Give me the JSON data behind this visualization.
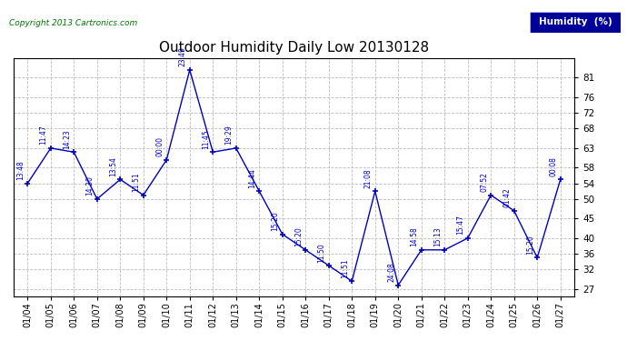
{
  "title": "Outdoor Humidity Daily Low 20130128",
  "copyright": "Copyright 2013 Cartronics.com",
  "legend_label": "Humidity  (%)",
  "x_labels": [
    "01/04",
    "01/05",
    "01/06",
    "01/07",
    "01/08",
    "01/09",
    "01/10",
    "01/11",
    "01/12",
    "01/13",
    "01/14",
    "01/15",
    "01/16",
    "01/17",
    "01/18",
    "01/19",
    "01/20",
    "01/21",
    "01/22",
    "01/23",
    "01/24",
    "01/25",
    "01/26",
    "01/27"
  ],
  "data_y": [
    54,
    63,
    62,
    50,
    55,
    51,
    60,
    83,
    62,
    63,
    52,
    41,
    37,
    33,
    29,
    52,
    28,
    37,
    37,
    40,
    51,
    47,
    35,
    55
  ],
  "point_labels": [
    "13:48",
    "11:47",
    "14:23",
    "14:30",
    "13:54",
    "11:51",
    "00:00",
    "23:49",
    "11:45",
    "19:29",
    "14:44",
    "15:20",
    "15:20",
    "11:50",
    "11:51",
    "21:08",
    "24:08",
    "14:58",
    "15:13",
    "15:47",
    "07:52",
    "01:42",
    "15:20",
    "00:08"
  ],
  "yticks": [
    27,
    32,
    36,
    40,
    45,
    50,
    54,
    58,
    63,
    68,
    72,
    76,
    81
  ],
  "ylim_min": 25,
  "ylim_max": 86,
  "line_color": "#0000bb",
  "grid_color": "#bbbbbb",
  "label_color": "#0000cc",
  "copyright_color": "#007700",
  "legend_bg": "#000099",
  "bg_color": "#ffffff"
}
